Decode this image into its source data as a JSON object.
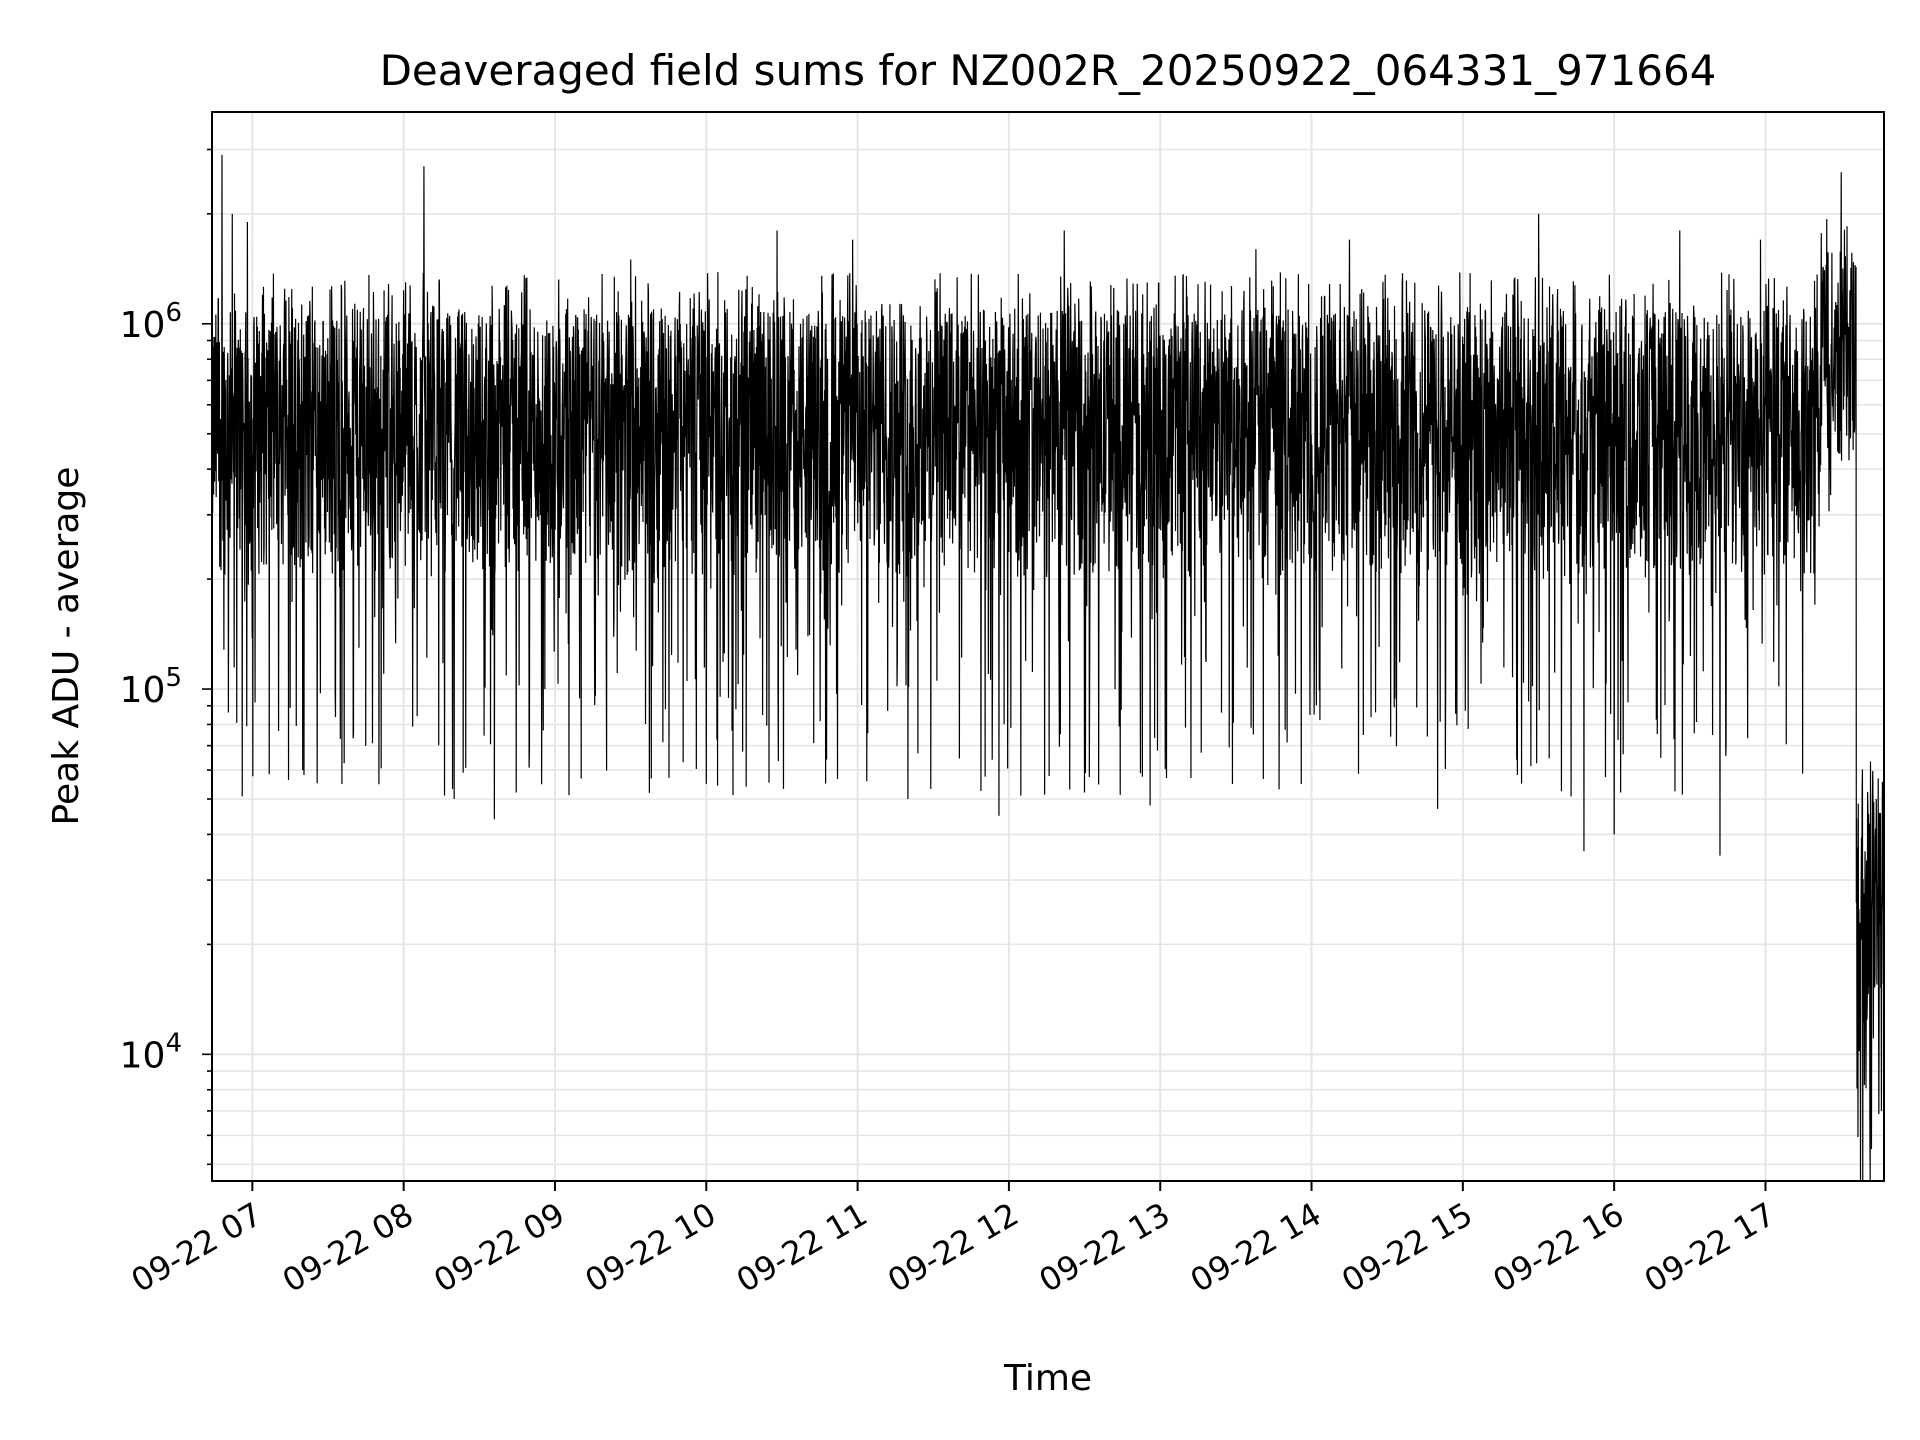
{
  "chart_data": {
    "type": "line",
    "title": "Deaveraged field sums for NZ002R_20250922_064331_971664",
    "xlabel": "Time",
    "ylabel": "Peak ADU - average",
    "yscale": "log",
    "ylim": [
      4500,
      3800000
    ],
    "xlim": [
      "2025-09-22 06:44",
      "2025-09-22 17:47"
    ],
    "grid": true,
    "line_color": "#000000",
    "grid_color": "#e5e5e5",
    "x_ticks": [
      {
        "label": "09-22 07",
        "time": "2025-09-22 07:00"
      },
      {
        "label": "09-22 08",
        "time": "2025-09-22 08:00"
      },
      {
        "label": "09-22 09",
        "time": "2025-09-22 09:00"
      },
      {
        "label": "09-22 10",
        "time": "2025-09-22 10:00"
      },
      {
        "label": "09-22 11",
        "time": "2025-09-22 11:00"
      },
      {
        "label": "09-22 12",
        "time": "2025-09-22 12:00"
      },
      {
        "label": "09-22 13",
        "time": "2025-09-22 13:00"
      },
      {
        "label": "09-22 14",
        "time": "2025-09-22 14:00"
      },
      {
        "label": "09-22 15",
        "time": "2025-09-22 15:00"
      },
      {
        "label": "09-22 16",
        "time": "2025-09-22 16:00"
      },
      {
        "label": "09-22 17",
        "time": "2025-09-22 17:00"
      }
    ],
    "y_ticks": [
      {
        "base": "10",
        "exp": "4",
        "value": 10000
      },
      {
        "base": "10",
        "exp": "5",
        "value": 100000
      },
      {
        "base": "10",
        "exp": "6",
        "value": 1000000
      }
    ],
    "series": [
      {
        "name": "",
        "points": [
          {
            "time": "2025-09-22 06:44",
            "value": 500000
          },
          {
            "time": "2025-09-22 06:48",
            "value": 2900000
          },
          {
            "time": "2025-09-22 06:52",
            "value": 2000000
          },
          {
            "time": "2025-09-22 06:58",
            "value": 1900000
          },
          {
            "time": "2025-09-22 07:20",
            "value": 60000
          },
          {
            "time": "2025-09-22 08:08",
            "value": 2700000
          },
          {
            "time": "2025-09-22 08:20",
            "value": 50000
          },
          {
            "time": "2025-09-22 08:36",
            "value": 44000
          },
          {
            "time": "2025-09-22 08:56",
            "value": 100000
          },
          {
            "time": "2025-09-22 09:30",
            "value": 1500000
          },
          {
            "time": "2025-09-22 10:00",
            "value": 55000
          },
          {
            "time": "2025-09-22 10:28",
            "value": 1800000
          },
          {
            "time": "2025-09-22 10:58",
            "value": 1700000
          },
          {
            "time": "2025-09-22 11:20",
            "value": 50000
          },
          {
            "time": "2025-09-22 11:56",
            "value": 45000
          },
          {
            "time": "2025-09-22 12:22",
            "value": 1800000
          },
          {
            "time": "2025-09-22 12:56",
            "value": 48000
          },
          {
            "time": "2025-09-22 13:38",
            "value": 1600000
          },
          {
            "time": "2025-09-22 14:15",
            "value": 1700000
          },
          {
            "time": "2025-09-22 14:50",
            "value": 47000
          },
          {
            "time": "2025-09-22 15:30",
            "value": 2000000
          },
          {
            "time": "2025-09-22 15:48",
            "value": 36000
          },
          {
            "time": "2025-09-22 16:00",
            "value": 40000
          },
          {
            "time": "2025-09-22 16:26",
            "value": 1800000
          },
          {
            "time": "2025-09-22 16:42",
            "value": 35000
          },
          {
            "time": "2025-09-22 16:58",
            "value": 1700000
          },
          {
            "time": "2025-09-22 17:20",
            "value": 600000
          },
          {
            "time": "2025-09-22 17:30",
            "value": 2600000
          },
          {
            "time": "2025-09-22 17:34",
            "value": 1200000
          },
          {
            "time": "2025-09-22 17:37",
            "value": 25000
          },
          {
            "time": "2025-09-22 17:40",
            "value": 15000
          },
          {
            "time": "2025-09-22 17:42",
            "value": 5500
          },
          {
            "time": "2025-09-22 17:44",
            "value": 50000
          },
          {
            "time": "2025-09-22 17:46",
            "value": 7000
          }
        ],
        "noise_band_low": 200000,
        "noise_band_high": 1100000
      }
    ]
  }
}
